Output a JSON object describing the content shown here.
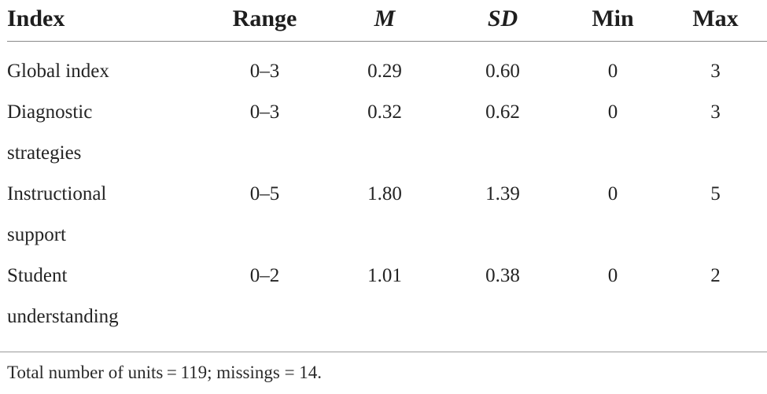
{
  "table": {
    "headers": [
      "Index",
      "Range",
      "M",
      "SD",
      "Min",
      "Max"
    ],
    "rows": [
      {
        "index": [
          "Global index"
        ],
        "range": "0–3",
        "m": "0.29",
        "sd": "0.60",
        "min": "0",
        "max": "3"
      },
      {
        "index": [
          "Diagnostic",
          "strategies"
        ],
        "range": "0–3",
        "m": "0.32",
        "sd": "0.62",
        "min": "0",
        "max": "3"
      },
      {
        "index": [
          "Instructional",
          "support"
        ],
        "range": "0–5",
        "m": "1.80",
        "sd": "1.39",
        "min": "0",
        "max": "5"
      },
      {
        "index": [
          "Student",
          "understanding"
        ],
        "range": "0–2",
        "m": "1.01",
        "sd": "0.38",
        "min": "0",
        "max": "2"
      }
    ],
    "note": "Total number of units = 119; missings = 14."
  }
}
